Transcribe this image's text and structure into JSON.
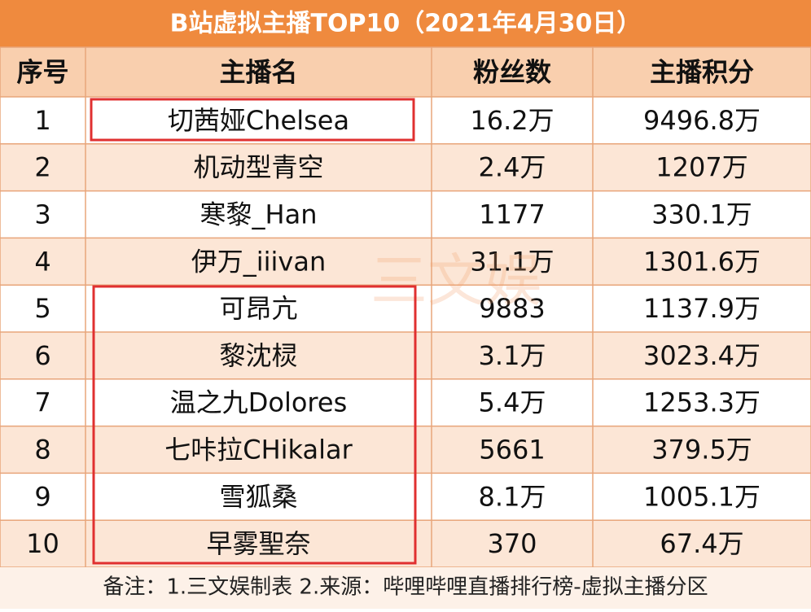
{
  "title": "B站虚拟主播TOP10（2021年4月30日）",
  "table": {
    "headers": [
      "序号",
      "主播名",
      "粉丝数",
      "主播积分"
    ],
    "rows": [
      [
        "1",
        "切茜娅Chelsea",
        "16.2万",
        "9496.8万"
      ],
      [
        "2",
        "机动型青空",
        "2.4万",
        "1207万"
      ],
      [
        "3",
        "寒黎_Han",
        "1177",
        "330.1万"
      ],
      [
        "4",
        "伊万_iiivan",
        "31.1万",
        "1301.6万"
      ],
      [
        "5",
        "可昂亢",
        "9883",
        "1137.9万"
      ],
      [
        "6",
        "黎沈棂",
        "3.1万",
        "3023.4万"
      ],
      [
        "7",
        "温之九Dolores",
        "5.4万",
        "1253.3万"
      ],
      [
        "8",
        "七咔拉CHikalar",
        "5661",
        "379.5万"
      ],
      [
        "9",
        "雪狐桑",
        "8.1万",
        "1005.1万"
      ],
      [
        "10",
        "早雾聖奈",
        "370",
        "67.4万"
      ]
    ]
  },
  "watermark": "三文娱",
  "footer": "备注：1.三文娱制表 2.来源：哔哩哔哩直播排行榜-虚拟主播分区"
}
